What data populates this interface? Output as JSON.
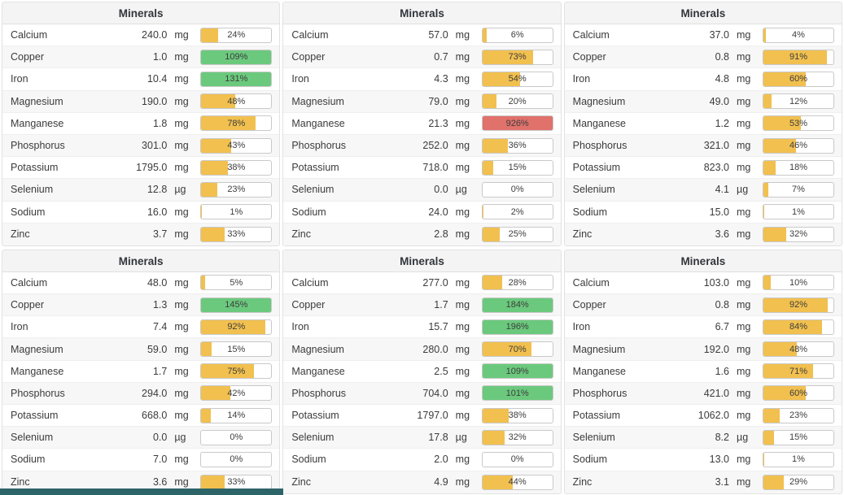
{
  "colors": {
    "amber": "#f1c04f",
    "green": "#6bc97d",
    "red": "#e0716b"
  },
  "footer_bar_color": "#2d6468",
  "panels": [
    {
      "title": "Minerals",
      "rows": [
        {
          "name": "Calcium",
          "value": "240.0",
          "unit": "mg",
          "percent": 24,
          "label": "24%",
          "color": "amber"
        },
        {
          "name": "Copper",
          "value": "1.0",
          "unit": "mg",
          "percent": 109,
          "label": "109%",
          "color": "green"
        },
        {
          "name": "Iron",
          "value": "10.4",
          "unit": "mg",
          "percent": 131,
          "label": "131%",
          "color": "green"
        },
        {
          "name": "Magnesium",
          "value": "190.0",
          "unit": "mg",
          "percent": 48,
          "label": "48%",
          "color": "amber"
        },
        {
          "name": "Manganese",
          "value": "1.8",
          "unit": "mg",
          "percent": 78,
          "label": "78%",
          "color": "amber"
        },
        {
          "name": "Phosphorus",
          "value": "301.0",
          "unit": "mg",
          "percent": 43,
          "label": "43%",
          "color": "amber"
        },
        {
          "name": "Potassium",
          "value": "1795.0",
          "unit": "mg",
          "percent": 38,
          "label": "38%",
          "color": "amber"
        },
        {
          "name": "Selenium",
          "value": "12.8",
          "unit": "µg",
          "percent": 23,
          "label": "23%",
          "color": "amber"
        },
        {
          "name": "Sodium",
          "value": "16.0",
          "unit": "mg",
          "percent": 1,
          "label": "1%",
          "color": "amber"
        },
        {
          "name": "Zinc",
          "value": "3.7",
          "unit": "mg",
          "percent": 33,
          "label": "33%",
          "color": "amber"
        }
      ]
    },
    {
      "title": "Minerals",
      "rows": [
        {
          "name": "Calcium",
          "value": "57.0",
          "unit": "mg",
          "percent": 6,
          "label": "6%",
          "color": "amber"
        },
        {
          "name": "Copper",
          "value": "0.7",
          "unit": "mg",
          "percent": 73,
          "label": "73%",
          "color": "amber"
        },
        {
          "name": "Iron",
          "value": "4.3",
          "unit": "mg",
          "percent": 54,
          "label": "54%",
          "color": "amber"
        },
        {
          "name": "Magnesium",
          "value": "79.0",
          "unit": "mg",
          "percent": 20,
          "label": "20%",
          "color": "amber"
        },
        {
          "name": "Manganese",
          "value": "21.3",
          "unit": "mg",
          "percent": 926,
          "label": "926%",
          "color": "red"
        },
        {
          "name": "Phosphorus",
          "value": "252.0",
          "unit": "mg",
          "percent": 36,
          "label": "36%",
          "color": "amber"
        },
        {
          "name": "Potassium",
          "value": "718.0",
          "unit": "mg",
          "percent": 15,
          "label": "15%",
          "color": "amber"
        },
        {
          "name": "Selenium",
          "value": "0.0",
          "unit": "µg",
          "percent": 0,
          "label": "0%",
          "color": "amber"
        },
        {
          "name": "Sodium",
          "value": "24.0",
          "unit": "mg",
          "percent": 2,
          "label": "2%",
          "color": "amber"
        },
        {
          "name": "Zinc",
          "value": "2.8",
          "unit": "mg",
          "percent": 25,
          "label": "25%",
          "color": "amber"
        }
      ]
    },
    {
      "title": "Minerals",
      "rows": [
        {
          "name": "Calcium",
          "value": "37.0",
          "unit": "mg",
          "percent": 4,
          "label": "4%",
          "color": "amber"
        },
        {
          "name": "Copper",
          "value": "0.8",
          "unit": "mg",
          "percent": 91,
          "label": "91%",
          "color": "amber"
        },
        {
          "name": "Iron",
          "value": "4.8",
          "unit": "mg",
          "percent": 60,
          "label": "60%",
          "color": "amber"
        },
        {
          "name": "Magnesium",
          "value": "49.0",
          "unit": "mg",
          "percent": 12,
          "label": "12%",
          "color": "amber"
        },
        {
          "name": "Manganese",
          "value": "1.2",
          "unit": "mg",
          "percent": 53,
          "label": "53%",
          "color": "amber"
        },
        {
          "name": "Phosphorus",
          "value": "321.0",
          "unit": "mg",
          "percent": 46,
          "label": "46%",
          "color": "amber"
        },
        {
          "name": "Potassium",
          "value": "823.0",
          "unit": "mg",
          "percent": 18,
          "label": "18%",
          "color": "amber"
        },
        {
          "name": "Selenium",
          "value": "4.1",
          "unit": "µg",
          "percent": 7,
          "label": "7%",
          "color": "amber"
        },
        {
          "name": "Sodium",
          "value": "15.0",
          "unit": "mg",
          "percent": 1,
          "label": "1%",
          "color": "amber"
        },
        {
          "name": "Zinc",
          "value": "3.6",
          "unit": "mg",
          "percent": 32,
          "label": "32%",
          "color": "amber"
        }
      ]
    },
    {
      "title": "Minerals",
      "rows": [
        {
          "name": "Calcium",
          "value": "48.0",
          "unit": "mg",
          "percent": 5,
          "label": "5%",
          "color": "amber"
        },
        {
          "name": "Copper",
          "value": "1.3",
          "unit": "mg",
          "percent": 145,
          "label": "145%",
          "color": "green"
        },
        {
          "name": "Iron",
          "value": "7.4",
          "unit": "mg",
          "percent": 92,
          "label": "92%",
          "color": "amber"
        },
        {
          "name": "Magnesium",
          "value": "59.0",
          "unit": "mg",
          "percent": 15,
          "label": "15%",
          "color": "amber"
        },
        {
          "name": "Manganese",
          "value": "1.7",
          "unit": "mg",
          "percent": 75,
          "label": "75%",
          "color": "amber"
        },
        {
          "name": "Phosphorus",
          "value": "294.0",
          "unit": "mg",
          "percent": 42,
          "label": "42%",
          "color": "amber"
        },
        {
          "name": "Potassium",
          "value": "668.0",
          "unit": "mg",
          "percent": 14,
          "label": "14%",
          "color": "amber"
        },
        {
          "name": "Selenium",
          "value": "0.0",
          "unit": "µg",
          "percent": 0,
          "label": "0%",
          "color": "amber"
        },
        {
          "name": "Sodium",
          "value": "7.0",
          "unit": "mg",
          "percent": 0,
          "label": "0%",
          "color": "amber"
        },
        {
          "name": "Zinc",
          "value": "3.6",
          "unit": "mg",
          "percent": 33,
          "label": "33%",
          "color": "amber"
        }
      ]
    },
    {
      "title": "Minerals",
      "rows": [
        {
          "name": "Calcium",
          "value": "277.0",
          "unit": "mg",
          "percent": 28,
          "label": "28%",
          "color": "amber"
        },
        {
          "name": "Copper",
          "value": "1.7",
          "unit": "mg",
          "percent": 184,
          "label": "184%",
          "color": "green"
        },
        {
          "name": "Iron",
          "value": "15.7",
          "unit": "mg",
          "percent": 196,
          "label": "196%",
          "color": "green"
        },
        {
          "name": "Magnesium",
          "value": "280.0",
          "unit": "mg",
          "percent": 70,
          "label": "70%",
          "color": "amber"
        },
        {
          "name": "Manganese",
          "value": "2.5",
          "unit": "mg",
          "percent": 109,
          "label": "109%",
          "color": "green"
        },
        {
          "name": "Phosphorus",
          "value": "704.0",
          "unit": "mg",
          "percent": 101,
          "label": "101%",
          "color": "green"
        },
        {
          "name": "Potassium",
          "value": "1797.0",
          "unit": "mg",
          "percent": 38,
          "label": "38%",
          "color": "amber"
        },
        {
          "name": "Selenium",
          "value": "17.8",
          "unit": "µg",
          "percent": 32,
          "label": "32%",
          "color": "amber"
        },
        {
          "name": "Sodium",
          "value": "2.0",
          "unit": "mg",
          "percent": 0,
          "label": "0%",
          "color": "amber"
        },
        {
          "name": "Zinc",
          "value": "4.9",
          "unit": "mg",
          "percent": 44,
          "label": "44%",
          "color": "amber"
        }
      ]
    },
    {
      "title": "Minerals",
      "rows": [
        {
          "name": "Calcium",
          "value": "103.0",
          "unit": "mg",
          "percent": 10,
          "label": "10%",
          "color": "amber"
        },
        {
          "name": "Copper",
          "value": "0.8",
          "unit": "mg",
          "percent": 92,
          "label": "92%",
          "color": "amber"
        },
        {
          "name": "Iron",
          "value": "6.7",
          "unit": "mg",
          "percent": 84,
          "label": "84%",
          "color": "amber"
        },
        {
          "name": "Magnesium",
          "value": "192.0",
          "unit": "mg",
          "percent": 48,
          "label": "48%",
          "color": "amber"
        },
        {
          "name": "Manganese",
          "value": "1.6",
          "unit": "mg",
          "percent": 71,
          "label": "71%",
          "color": "amber"
        },
        {
          "name": "Phosphorus",
          "value": "421.0",
          "unit": "mg",
          "percent": 60,
          "label": "60%",
          "color": "amber"
        },
        {
          "name": "Potassium",
          "value": "1062.0",
          "unit": "mg",
          "percent": 23,
          "label": "23%",
          "color": "amber"
        },
        {
          "name": "Selenium",
          "value": "8.2",
          "unit": "µg",
          "percent": 15,
          "label": "15%",
          "color": "amber"
        },
        {
          "name": "Sodium",
          "value": "13.0",
          "unit": "mg",
          "percent": 1,
          "label": "1%",
          "color": "amber"
        },
        {
          "name": "Zinc",
          "value": "3.1",
          "unit": "mg",
          "percent": 29,
          "label": "29%",
          "color": "amber"
        }
      ]
    }
  ]
}
